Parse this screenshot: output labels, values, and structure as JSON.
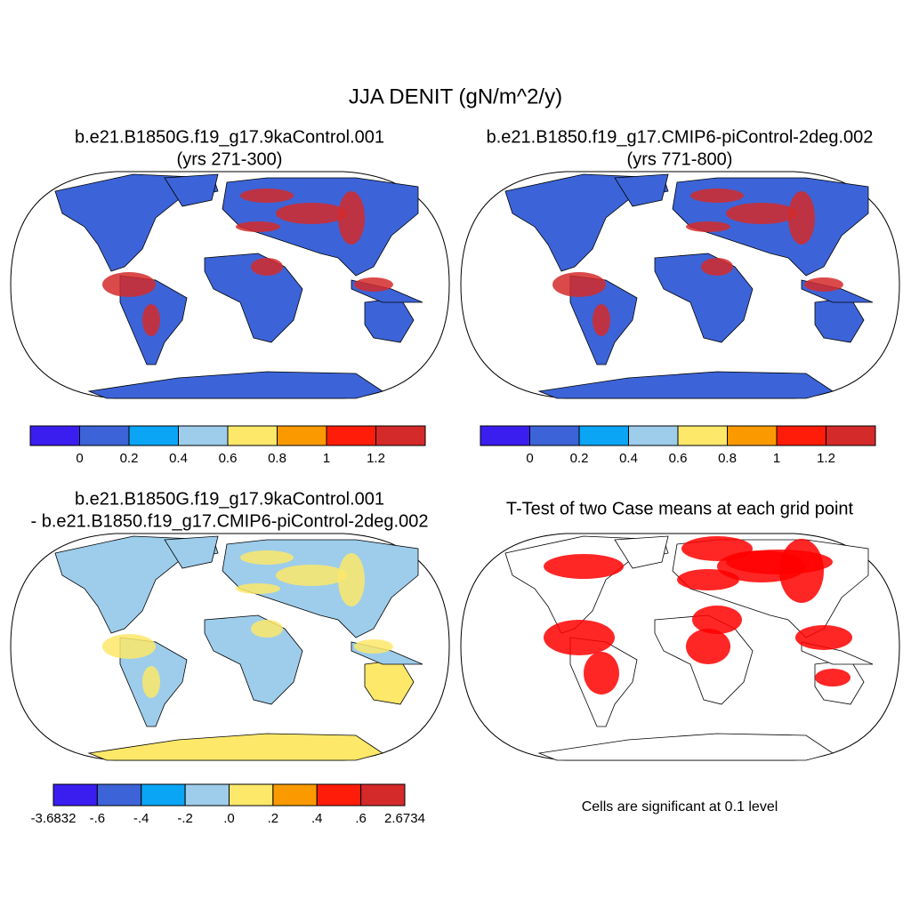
{
  "title": "JJA DENIT (gN/m^2/y)",
  "panels": [
    {
      "title_lines": [
        "b.e21.B1850G.f19_g17.9kaControl.001",
        "(yrs 271-300)"
      ],
      "colorbar": {
        "colors": [
          "#3a1ef0",
          "#3c64d8",
          "#0aa5f5",
          "#9dcdeb",
          "#fde86a",
          "#fb9a00",
          "#ff1d0a",
          "#d42a2a"
        ],
        "labels": [
          "0",
          "0.2",
          "0.4",
          "0.6",
          "0.8",
          "1",
          "1.2"
        ]
      }
    },
    {
      "title_lines": [
        "b.e21.B1850.f19_g17.CMIP6-piControl-2deg.002",
        "(yrs 771-800)"
      ],
      "colorbar": {
        "colors": [
          "#3a1ef0",
          "#3c64d8",
          "#0aa5f5",
          "#9dcdeb",
          "#fde86a",
          "#fb9a00",
          "#ff1d0a",
          "#d42a2a"
        ],
        "labels": [
          "0",
          "0.2",
          "0.4",
          "0.6",
          "0.8",
          "1",
          "1.2"
        ]
      }
    },
    {
      "title_lines": [
        "b.e21.B1850G.f19_g17.9kaControl.001",
        "- b.e21.B1850.f19_g17.CMIP6-piControl-2deg.002"
      ],
      "colorbar": {
        "colors": [
          "#3a1ef0",
          "#3c64d8",
          "#0aa5f5",
          "#9dcdeb",
          "#fde86a",
          "#fb9a00",
          "#ff1d0a",
          "#d42a2a"
        ],
        "labels": [
          "-3.6832",
          "-.6",
          "-.4",
          "-.2",
          ".0",
          ".2",
          ".4",
          ".6",
          "2.6734"
        ]
      }
    },
    {
      "title_lines": [
        "T-Test of two Case means at each grid point"
      ],
      "note": "Cells are significant at 0.1 level"
    }
  ]
}
